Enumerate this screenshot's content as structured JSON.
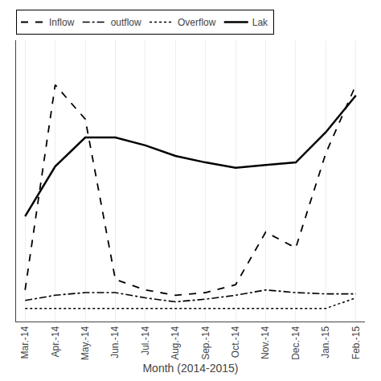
{
  "chart_data": {
    "type": "line",
    "categories": [
      "Mar.-14",
      "Apr.-14",
      "May.-14",
      "Jun.-14",
      "Jul.-14",
      "Aug.-14",
      "Sep.-14",
      "Oct.-14",
      "Nov.-14",
      "Dec.-14",
      "Jan.-15",
      "Feb.-15"
    ],
    "series": [
      {
        "name": "Inflow",
        "color": "#000000",
        "line_style": "dashed",
        "values": [
          0.1,
          0.88,
          0.75,
          0.14,
          0.1,
          0.08,
          0.09,
          0.12,
          0.32,
          0.26,
          0.62,
          0.88
        ]
      },
      {
        "name": "outflow",
        "color": "#000000",
        "line_style": "dashdot",
        "values": [
          0.06,
          0.08,
          0.09,
          0.09,
          0.07,
          0.055,
          0.065,
          0.08,
          0.1,
          0.09,
          0.085,
          0.085
        ]
      },
      {
        "name": "Overflow",
        "color": "#000000",
        "line_style": "dotted",
        "values": [
          0.03,
          0.03,
          0.03,
          0.03,
          0.03,
          0.03,
          0.03,
          0.03,
          0.03,
          0.03,
          0.03,
          0.07
        ]
      },
      {
        "name": "Lak",
        "color": "#000000",
        "line_style": "solid",
        "values": [
          0.38,
          0.57,
          0.68,
          0.68,
          0.65,
          0.61,
          0.585,
          0.565,
          0.575,
          0.585,
          0.7,
          0.84
        ]
      }
    ],
    "xlabel": "Month (2014-2015)",
    "ylim": [
      -0.02,
      1.05
    ],
    "grid": true,
    "legend": "upper left",
    "tick_labels": "x"
  }
}
